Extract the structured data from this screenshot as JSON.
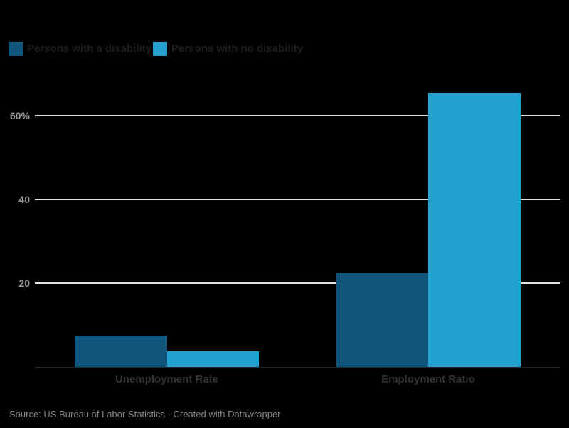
{
  "colors": {
    "background": "#000000",
    "series_disability": "#10567a",
    "series_no_disability": "#22a2ce",
    "gridline": "#e4e4e4",
    "baseline": "#262626",
    "tick_label_text": "#9c9c9c",
    "category_label_text": "#333333",
    "legend_text": "#1d1d20",
    "source_text": "#848484"
  },
  "legend": {
    "items": [
      {
        "label": "Persons with a disability",
        "color": "#10567a"
      },
      {
        "label": "Persons with no disability",
        "color": "#22a2ce"
      }
    ]
  },
  "footer": {
    "source_line": "Source: US Bureau of Labor Statistics · Created with Datawrapper"
  },
  "chart_data": {
    "type": "bar",
    "title": "",
    "xlabel": "",
    "ylabel": "",
    "unit": "%",
    "categories": [
      "Unemployment Rate",
      "Employment Ratio"
    ],
    "series": [
      {
        "name": "Persons with a disability",
        "color": "#10567a",
        "values": [
          7.5,
          22.5
        ]
      },
      {
        "name": "Persons with no disability",
        "color": "#22a2ce",
        "values": [
          3.8,
          65.5
        ]
      }
    ],
    "y_ticks": [
      {
        "value": 20,
        "label": "20"
      },
      {
        "value": 40,
        "label": "40"
      },
      {
        "value": 60,
        "label": "60%"
      }
    ],
    "ylim": [
      0,
      66.5
    ],
    "grid": "horizontal",
    "legend_position": "top-left"
  }
}
